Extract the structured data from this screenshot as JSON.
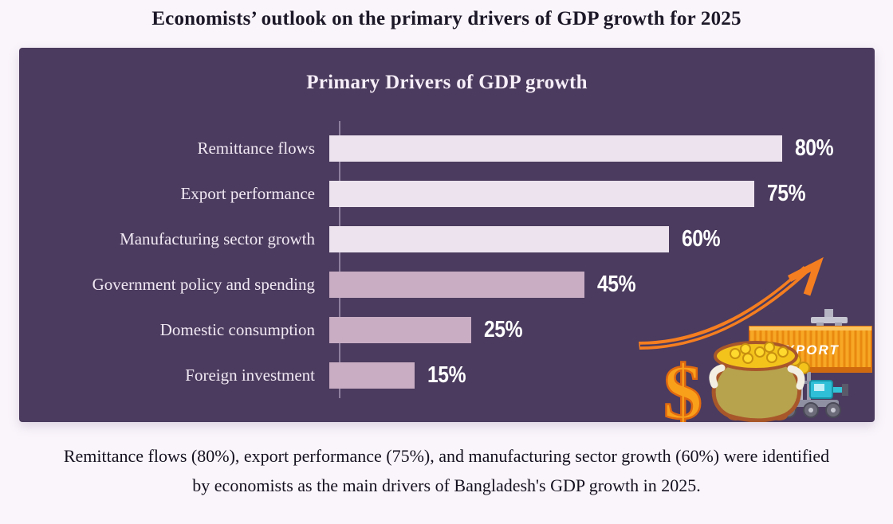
{
  "page": {
    "title": "Economists’ outlook on the primary drivers of GDP growth for 2025",
    "background_color": "#faf5fb"
  },
  "panel": {
    "background_color": "#4b3b5e"
  },
  "chart_data": {
    "type": "bar",
    "orientation": "horizontal",
    "title": "Primary Drivers of GDP growth",
    "categories": [
      "Remittance flows",
      "Export performance",
      "Manufacturing sector growth",
      "Government policy and spending",
      "Domestic consumption",
      "Foreign investment"
    ],
    "values": [
      80,
      75,
      60,
      45,
      25,
      15
    ],
    "value_labels": [
      "80%",
      "75%",
      "60%",
      "45%",
      "25%",
      "15%"
    ],
    "unit": "%",
    "xlim": [
      0,
      100
    ],
    "grid": false,
    "legend": false,
    "bar_colors": [
      "#ece3ee",
      "#ece3ee",
      "#ece3ee",
      "#c8adc3",
      "#c8adc3",
      "#c8adc3"
    ],
    "label_color": "#f1e9f4",
    "value_label_color": "#ffffff"
  },
  "illustration": {
    "container_label": "EXPORT",
    "dollar_symbol": "$",
    "arrow_color": "#f57e20",
    "container_color": "#f7a825",
    "coin_color": "#f3c31c",
    "vehicle_color": "#35c4d7"
  },
  "caption": {
    "line1": "Remittance flows (80%), export performance (75%), and manufacturing sector growth (60%) were identified",
    "line2": "by economists as the main drivers of Bangladesh's GDP growth in 2025."
  }
}
